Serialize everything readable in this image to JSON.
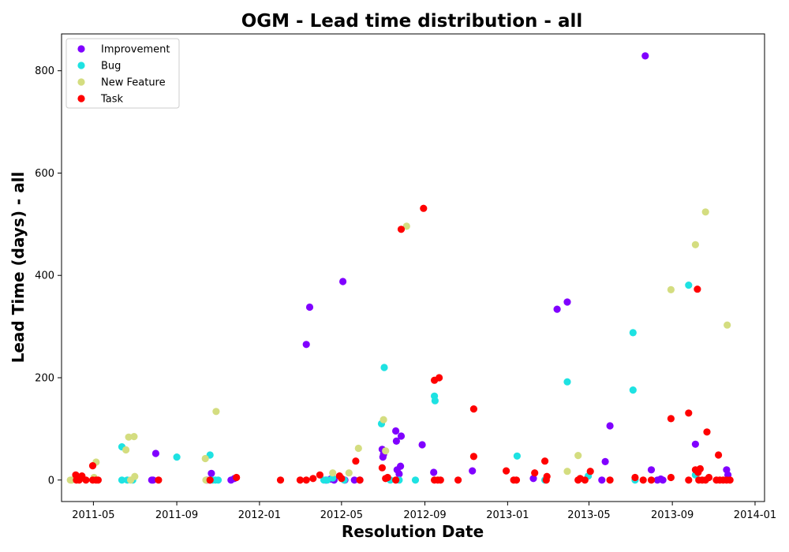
{
  "chart_data": {
    "type": "scatter",
    "title": "OGM - Lead time distribution - all",
    "xlabel": "Resolution Date",
    "ylabel": "Lead Time (days) - all",
    "x_type": "date",
    "xlim": [
      "2011-03-15",
      "2014-01-15"
    ],
    "ylim": [
      -42,
      872
    ],
    "x_ticks": [
      {
        "date": "2011-05-01",
        "label": "2011-05"
      },
      {
        "date": "2011-09-01",
        "label": "2011-09"
      },
      {
        "date": "2012-01-01",
        "label": "2012-01"
      },
      {
        "date": "2012-05-01",
        "label": "2012-05"
      },
      {
        "date": "2012-09-01",
        "label": "2012-09"
      },
      {
        "date": "2013-01-01",
        "label": "2013-01"
      },
      {
        "date": "2013-05-01",
        "label": "2013-05"
      },
      {
        "date": "2013-09-01",
        "label": "2013-09"
      },
      {
        "date": "2014-01-01",
        "label": "2014-01"
      }
    ],
    "y_ticks": [
      0,
      200,
      400,
      600,
      800
    ],
    "grid": false,
    "legend_position": "top-left",
    "series": [
      {
        "name": "Improvement",
        "color": "#8000ff",
        "points": [
          [
            "2011-07-26",
            0
          ],
          [
            "2011-07-28",
            0
          ],
          [
            "2011-08-01",
            52
          ],
          [
            "2011-10-15",
            0
          ],
          [
            "2011-10-20",
            0
          ],
          [
            "2011-10-22",
            13
          ],
          [
            "2011-11-20",
            0
          ],
          [
            "2011-11-25",
            3
          ],
          [
            "2012-03-10",
            265
          ],
          [
            "2012-03-15",
            338
          ],
          [
            "2012-04-08",
            0
          ],
          [
            "2012-04-15",
            2
          ],
          [
            "2012-04-20",
            0
          ],
          [
            "2012-05-03",
            388
          ],
          [
            "2012-05-06",
            0
          ],
          [
            "2012-05-20",
            0
          ],
          [
            "2012-05-28",
            0
          ],
          [
            "2012-06-30",
            60
          ],
          [
            "2012-07-01",
            45
          ],
          [
            "2012-07-02",
            50
          ],
          [
            "2012-07-20",
            96
          ],
          [
            "2012-07-21",
            76
          ],
          [
            "2012-07-22",
            20
          ],
          [
            "2012-07-25",
            12
          ],
          [
            "2012-07-27",
            27
          ],
          [
            "2012-07-28",
            86
          ],
          [
            "2012-08-28",
            69
          ],
          [
            "2012-09-14",
            15
          ],
          [
            "2012-11-10",
            18
          ],
          [
            "2013-02-08",
            3
          ],
          [
            "2013-03-15",
            334
          ],
          [
            "2013-03-30",
            348
          ],
          [
            "2013-05-20",
            0
          ],
          [
            "2013-05-25",
            36
          ],
          [
            "2013-06-01",
            106
          ],
          [
            "2013-07-23",
            829
          ],
          [
            "2013-08-01",
            20
          ],
          [
            "2013-08-10",
            0
          ],
          [
            "2013-08-15",
            2
          ],
          [
            "2013-08-18",
            0
          ],
          [
            "2013-10-05",
            70
          ],
          [
            "2013-11-20",
            20
          ],
          [
            "2013-11-22",
            10
          ]
        ]
      },
      {
        "name": "Bug",
        "color": "#1ee2e2",
        "points": [
          [
            "2011-06-12",
            65
          ],
          [
            "2011-06-12",
            0
          ],
          [
            "2011-06-20",
            0
          ],
          [
            "2011-06-28",
            0
          ],
          [
            "2011-09-01",
            45
          ],
          [
            "2011-10-20",
            49
          ],
          [
            "2011-10-24",
            0
          ],
          [
            "2011-10-28",
            0
          ],
          [
            "2011-11-01",
            0
          ],
          [
            "2012-04-05",
            0
          ],
          [
            "2012-04-10",
            0
          ],
          [
            "2012-04-18",
            4
          ],
          [
            "2012-05-05",
            0
          ],
          [
            "2012-06-29",
            110
          ],
          [
            "2012-07-03",
            220
          ],
          [
            "2012-07-12",
            0
          ],
          [
            "2012-07-25",
            0
          ],
          [
            "2012-08-18",
            0
          ],
          [
            "2012-09-15",
            164
          ],
          [
            "2012-09-16",
            155
          ],
          [
            "2013-01-15",
            47
          ],
          [
            "2013-02-25",
            0
          ],
          [
            "2013-03-30",
            192
          ],
          [
            "2013-04-30",
            8
          ],
          [
            "2013-07-05",
            288
          ],
          [
            "2013-07-05",
            176
          ],
          [
            "2013-07-08",
            0
          ],
          [
            "2013-09-25",
            381
          ],
          [
            "2013-10-05",
            10
          ]
        ]
      },
      {
        "name": "New Feature",
        "color": "#d4dd80",
        "points": [
          [
            "2011-03-28",
            0
          ],
          [
            "2011-03-30",
            0
          ],
          [
            "2011-05-02",
            5
          ],
          [
            "2011-05-05",
            35
          ],
          [
            "2011-06-18",
            59
          ],
          [
            "2011-06-22",
            84
          ],
          [
            "2011-06-25",
            0
          ],
          [
            "2011-06-30",
            85
          ],
          [
            "2011-07-01",
            7
          ],
          [
            "2011-10-13",
            42
          ],
          [
            "2011-10-14",
            0
          ],
          [
            "2011-10-29",
            134
          ],
          [
            "2012-04-18",
            14
          ],
          [
            "2012-05-12",
            14
          ],
          [
            "2012-05-26",
            62
          ],
          [
            "2012-07-02",
            118
          ],
          [
            "2012-07-05",
            57
          ],
          [
            "2012-08-05",
            496
          ],
          [
            "2013-03-30",
            17
          ],
          [
            "2013-04-15",
            48
          ],
          [
            "2013-08-30",
            372
          ],
          [
            "2013-10-05",
            460
          ],
          [
            "2013-10-20",
            524
          ],
          [
            "2013-11-21",
            303
          ]
        ]
      },
      {
        "name": "Task",
        "color": "#ff0000",
        "points": [
          [
            "2011-04-05",
            10
          ],
          [
            "2011-04-06",
            0
          ],
          [
            "2011-04-10",
            0
          ],
          [
            "2011-04-14",
            8
          ],
          [
            "2011-04-20",
            0
          ],
          [
            "2011-04-30",
            28
          ],
          [
            "2011-04-30",
            0
          ],
          [
            "2011-05-05",
            0
          ],
          [
            "2011-05-08",
            0
          ],
          [
            "2011-08-05",
            0
          ],
          [
            "2011-10-20",
            0
          ],
          [
            "2011-11-28",
            5
          ],
          [
            "2012-02-01",
            0
          ],
          [
            "2012-03-01",
            0
          ],
          [
            "2012-03-10",
            0
          ],
          [
            "2012-03-20",
            3
          ],
          [
            "2012-03-30",
            10
          ],
          [
            "2012-04-28",
            8
          ],
          [
            "2012-05-01",
            3
          ],
          [
            "2012-05-22",
            37
          ],
          [
            "2012-05-28",
            0
          ],
          [
            "2012-06-30",
            24
          ],
          [
            "2012-07-05",
            3
          ],
          [
            "2012-07-08",
            5
          ],
          [
            "2012-07-20",
            0
          ],
          [
            "2012-07-28",
            490
          ],
          [
            "2012-08-30",
            531
          ],
          [
            "2012-09-15",
            195
          ],
          [
            "2012-09-15",
            0
          ],
          [
            "2012-09-20",
            0
          ],
          [
            "2012-09-22",
            200
          ],
          [
            "2012-09-24",
            0
          ],
          [
            "2012-10-20",
            0
          ],
          [
            "2012-11-12",
            139
          ],
          [
            "2012-11-12",
            46
          ],
          [
            "2012-12-30",
            18
          ],
          [
            "2013-01-10",
            0
          ],
          [
            "2013-01-14",
            0
          ],
          [
            "2013-02-10",
            14
          ],
          [
            "2013-02-25",
            37
          ],
          [
            "2013-02-27",
            0
          ],
          [
            "2013-02-28",
            7
          ],
          [
            "2013-04-15",
            0
          ],
          [
            "2013-04-18",
            3
          ],
          [
            "2013-04-25",
            0
          ],
          [
            "2013-05-03",
            17
          ],
          [
            "2013-06-01",
            0
          ],
          [
            "2013-07-08",
            5
          ],
          [
            "2013-07-20",
            0
          ],
          [
            "2013-08-01",
            0
          ],
          [
            "2013-08-30",
            120
          ],
          [
            "2013-08-30",
            5
          ],
          [
            "2013-09-25",
            131
          ],
          [
            "2013-09-25",
            0
          ],
          [
            "2013-10-05",
            20
          ],
          [
            "2013-10-08",
            373
          ],
          [
            "2013-10-09",
            15
          ],
          [
            "2013-10-10",
            0
          ],
          [
            "2013-10-12",
            22
          ],
          [
            "2013-10-15",
            0
          ],
          [
            "2013-10-20",
            0
          ],
          [
            "2013-10-22",
            94
          ],
          [
            "2013-10-25",
            5
          ],
          [
            "2013-11-05",
            0
          ],
          [
            "2013-11-08",
            49
          ],
          [
            "2013-11-10",
            0
          ],
          [
            "2013-11-15",
            0
          ],
          [
            "2013-11-20",
            0
          ],
          [
            "2013-11-25",
            0
          ]
        ]
      }
    ]
  }
}
